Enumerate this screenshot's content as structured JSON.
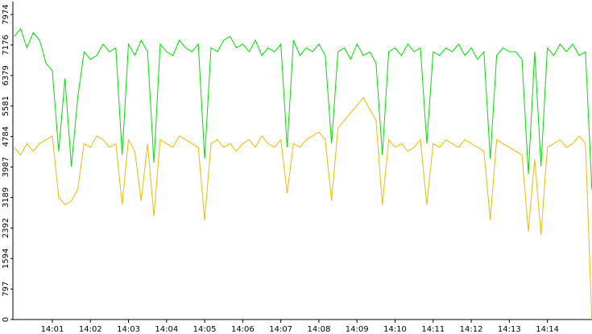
{
  "chart_data": {
    "type": "line",
    "categories": [
      null,
      null,
      null,
      null,
      null,
      null,
      "14:01",
      null,
      null,
      null,
      null,
      null,
      "14:02",
      null,
      null,
      null,
      null,
      null,
      "14:03",
      null,
      null,
      null,
      null,
      null,
      "14:04",
      null,
      null,
      null,
      null,
      null,
      "14:05",
      null,
      null,
      null,
      null,
      null,
      "14:06",
      null,
      null,
      null,
      null,
      null,
      "14:07",
      null,
      null,
      null,
      null,
      null,
      "14:08",
      null,
      null,
      null,
      null,
      null,
      "14:09",
      null,
      null,
      null,
      null,
      null,
      "14:10",
      null,
      null,
      null,
      null,
      null,
      "14:11",
      null,
      null,
      null,
      null,
      null,
      "14:12",
      null,
      null,
      null,
      null,
      null,
      "14:13",
      null,
      null,
      null,
      null,
      null,
      "14:14",
      null,
      null,
      null,
      null,
      null,
      null,
      null
    ],
    "series": [
      {
        "color": "#00e000",
        "values": [
          7400,
          7600,
          7100,
          7500,
          7300,
          6700,
          6500,
          4400,
          6300,
          4000,
          5800,
          7000,
          6800,
          6900,
          7200,
          7000,
          7100,
          4300,
          7200,
          6900,
          7300,
          7000,
          4100,
          7200,
          7000,
          6900,
          7300,
          7100,
          7000,
          7200,
          4200,
          7100,
          7000,
          7300,
          7400,
          7100,
          7200,
          7000,
          7300,
          6900,
          7100,
          7000,
          7200,
          4500,
          7300,
          6900,
          7100,
          7000,
          7200,
          6900,
          4600,
          7000,
          7100,
          6800,
          7200,
          6900,
          7000,
          6700,
          4300,
          7000,
          7100,
          6900,
          7200,
          7000,
          7100,
          4600,
          7000,
          6900,
          7100,
          7000,
          7200,
          6900,
          7100,
          6800,
          7000,
          4200,
          6900,
          7100,
          7000,
          7000,
          6800,
          3800,
          7000,
          4000,
          7100,
          6900,
          7200,
          7000,
          7200,
          6900,
          7000,
          3400
        ]
      },
      {
        "color": "#f5b800",
        "values": [
          4500,
          4300,
          4600,
          4400,
          4600,
          4700,
          4800,
          3200,
          3000,
          3100,
          3400,
          4600,
          4500,
          4800,
          4700,
          4500,
          4600,
          3000,
          4700,
          4400,
          3100,
          4600,
          2700,
          4700,
          4600,
          4500,
          4800,
          4700,
          4600,
          4500,
          2600,
          4600,
          4700,
          4500,
          4600,
          4400,
          4600,
          4700,
          4500,
          4800,
          4600,
          4500,
          4700,
          3300,
          4600,
          4500,
          4700,
          4800,
          4900,
          4700,
          3100,
          5000,
          5200,
          5400,
          5600,
          5800,
          5500,
          5200,
          3000,
          4700,
          4500,
          4600,
          4400,
          4500,
          4700,
          3000,
          4600,
          4500,
          4700,
          4600,
          4500,
          4700,
          4600,
          4500,
          4400,
          2600,
          4700,
          4600,
          4500,
          4400,
          4300,
          2300,
          4200,
          2200,
          4500,
          4600,
          4700,
          4500,
          4600,
          4800,
          4600,
          0
        ]
      }
    ],
    "ylim": [
      0,
      7974
    ],
    "yticks": [
      0,
      797,
      1594,
      2392,
      3189,
      3987,
      4784,
      5581,
      6379,
      7176,
      7974
    ]
  }
}
